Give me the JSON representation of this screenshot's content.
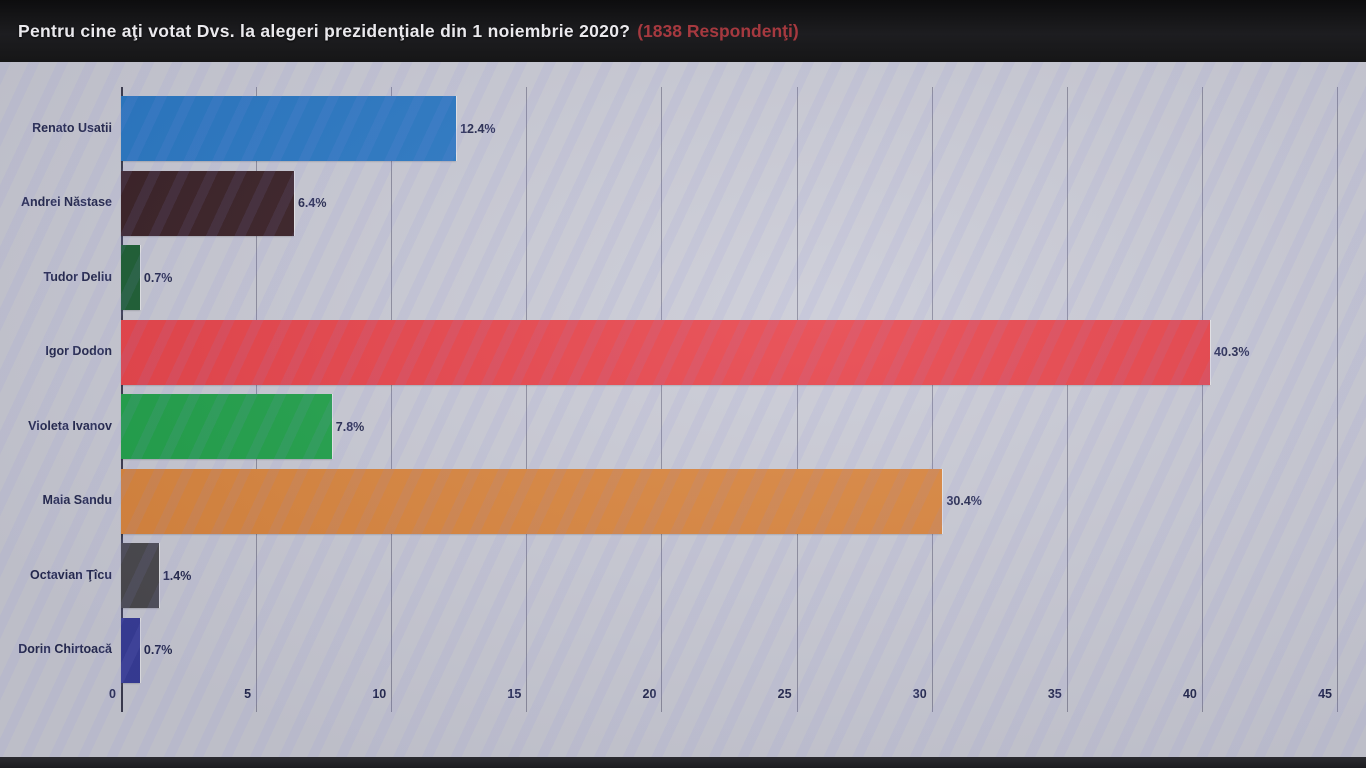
{
  "header": {
    "title": "Pentru cine aţi votat Dvs. la alegeri prezidenţiale din 1 noiembrie 2020?",
    "respondents": "(1838 Respondenţi)"
  },
  "chart_data": {
    "type": "bar",
    "orientation": "horizontal",
    "title": "Pentru cine aţi votat Dvs. la alegeri prezidenţiale din 1 noiembrie 2020?",
    "subtitle": "(1838 Respondenţi)",
    "categories": [
      "Renato Usatii",
      "Andrei Năstase",
      "Tudor Deliu",
      "Igor Dodon",
      "Violeta Ivanov",
      "Maia Sandu",
      "Octavian Ţîcu",
      "Dorin Chirtoacă"
    ],
    "values": [
      12.4,
      6.4,
      0.7,
      40.3,
      7.8,
      30.4,
      1.4,
      0.7
    ],
    "value_labels": [
      "12.4%",
      "6.4%",
      "0.7%",
      "40.3%",
      "7.8%",
      "30.4%",
      "1.4%",
      "0.7%"
    ],
    "bar_colors": [
      "#2a78c4",
      "#3a2127",
      "#1d5f35",
      "#e7434a",
      "#21a14b",
      "#d9853e",
      "#4a494e",
      "#383d99"
    ],
    "xlim": [
      0,
      45
    ],
    "xticks": [
      0,
      5,
      10,
      15,
      20,
      25,
      30,
      35,
      40,
      45
    ],
    "xlabel": "",
    "ylabel": "",
    "grid": "vertical",
    "legend": "none"
  },
  "colors": {
    "header_bg": "#18181a",
    "title_text": "#eae9ed",
    "respondents_text": "#a6393f",
    "plot_bg": "#c9cad5",
    "grid_line": "#8b8b9e",
    "axis_line": "#3c3c50",
    "label_text": "#262a52",
    "footer_bg": "#2b2b30"
  }
}
